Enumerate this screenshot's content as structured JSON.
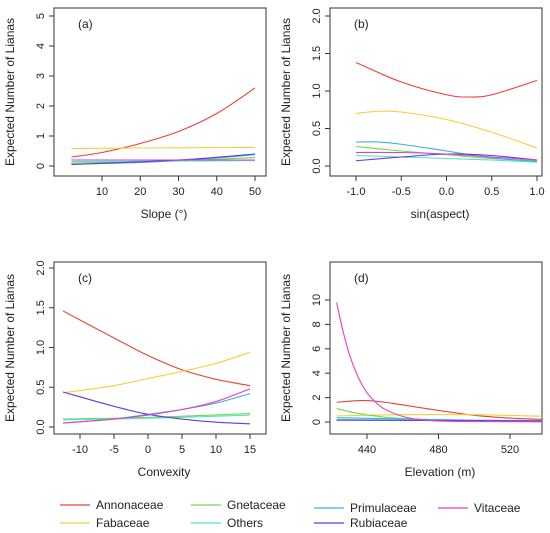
{
  "chart_data": [
    {
      "type": "line",
      "panel": "(a)",
      "xlabel": "Slope (°)",
      "ylabel": "Expected Number of Lianas",
      "xlim": [
        2,
        50
      ],
      "ylim": [
        0,
        5
      ],
      "xticks": [
        10,
        20,
        30,
        40,
        50
      ],
      "yticks": [
        0,
        1,
        2,
        3,
        4,
        5
      ],
      "series": [
        {
          "name": "Annonaceae",
          "color": "#e8413b",
          "points": [
            [
              2,
              0.3
            ],
            [
              10,
              0.45
            ],
            [
              20,
              0.75
            ],
            [
              30,
              1.15
            ],
            [
              40,
              1.75
            ],
            [
              50,
              2.6
            ]
          ]
        },
        {
          "name": "Fabaceae",
          "color": "#f2cf3a",
          "points": [
            [
              2,
              0.58
            ],
            [
              20,
              0.6
            ],
            [
              35,
              0.61
            ],
            [
              50,
              0.62
            ]
          ]
        },
        {
          "name": "Gnetaceae",
          "color": "#6fd94a",
          "points": [
            [
              2,
              0.1
            ],
            [
              20,
              0.14
            ],
            [
              35,
              0.2
            ],
            [
              50,
              0.28
            ]
          ]
        },
        {
          "name": "Others",
          "color": "#52e3c7",
          "points": [
            [
              2,
              0.15
            ],
            [
              20,
              0.16
            ],
            [
              35,
              0.17
            ],
            [
              50,
              0.18
            ]
          ]
        },
        {
          "name": "Primulaceae",
          "color": "#3ab0e0",
          "points": [
            [
              2,
              0.06
            ],
            [
              20,
              0.12
            ],
            [
              35,
              0.22
            ],
            [
              50,
              0.38
            ]
          ]
        },
        {
          "name": "Rubiaceae",
          "color": "#5a3ee0",
          "points": [
            [
              2,
              0.05
            ],
            [
              20,
              0.14
            ],
            [
              35,
              0.24
            ],
            [
              50,
              0.4
            ]
          ]
        },
        {
          "name": "Vitaceae",
          "color": "#e23fc9",
          "points": [
            [
              2,
              0.2
            ],
            [
              20,
              0.2
            ],
            [
              35,
              0.2
            ],
            [
              50,
              0.2
            ]
          ]
        }
      ]
    },
    {
      "type": "line",
      "panel": "(b)",
      "xlabel": "sin(aspect)",
      "ylabel": "Expected Number of Lianas",
      "xlim": [
        -1,
        1
      ],
      "ylim": [
        0,
        2
      ],
      "xticks": [
        "-1.0",
        "-0.5",
        "0.0",
        "0.5",
        "1.0"
      ],
      "yticks": [
        "0.0",
        "0.5",
        "1.0",
        "1.5",
        "2.0"
      ],
      "series": [
        {
          "name": "Annonaceae",
          "color": "#e8413b",
          "points": [
            [
              -1,
              1.38
            ],
            [
              -0.5,
              1.12
            ],
            [
              0,
              0.95
            ],
            [
              0.25,
              0.92
            ],
            [
              0.5,
              0.95
            ],
            [
              1,
              1.14
            ]
          ]
        },
        {
          "name": "Fabaceae",
          "color": "#f2cf3a",
          "points": [
            [
              -1,
              0.7
            ],
            [
              -0.75,
              0.73
            ],
            [
              -0.5,
              0.72
            ],
            [
              0,
              0.62
            ],
            [
              0.5,
              0.45
            ],
            [
              1,
              0.24
            ]
          ]
        },
        {
          "name": "Gnetaceae",
          "color": "#6fd94a",
          "points": [
            [
              -1,
              0.26
            ],
            [
              -0.5,
              0.2
            ],
            [
              0,
              0.15
            ],
            [
              0.5,
              0.1
            ],
            [
              1,
              0.07
            ]
          ]
        },
        {
          "name": "Others",
          "color": "#52e3c7",
          "points": [
            [
              -1,
              0.14
            ],
            [
              -0.5,
              0.12
            ],
            [
              0,
              0.1
            ],
            [
              0.5,
              0.08
            ],
            [
              1,
              0.05
            ]
          ]
        },
        {
          "name": "Primulaceae",
          "color": "#3ab0e0",
          "points": [
            [
              -1,
              0.32
            ],
            [
              -0.75,
              0.32
            ],
            [
              -0.5,
              0.29
            ],
            [
              0,
              0.2
            ],
            [
              0.5,
              0.11
            ],
            [
              1,
              0.06
            ]
          ]
        },
        {
          "name": "Rubiaceae",
          "color": "#5a3ee0",
          "points": [
            [
              -1,
              0.07
            ],
            [
              -0.5,
              0.12
            ],
            [
              0,
              0.16
            ],
            [
              0.5,
              0.14
            ],
            [
              1,
              0.08
            ]
          ]
        },
        {
          "name": "Vitaceae",
          "color": "#e23fc9",
          "points": [
            [
              -1,
              0.18
            ],
            [
              -0.5,
              0.18
            ],
            [
              0,
              0.16
            ],
            [
              0.5,
              0.12
            ],
            [
              1,
              0.08
            ]
          ]
        }
      ]
    },
    {
      "type": "line",
      "panel": "(c)",
      "xlabel": "Convexity",
      "ylabel": "Expected Number of Lianas",
      "xlim": [
        -12.5,
        15
      ],
      "ylim": [
        0,
        2
      ],
      "xticks": [
        "-10",
        "-5",
        "0",
        "5",
        "10",
        "15"
      ],
      "yticks": [
        "0.0",
        "0.5",
        "1.0",
        "1.5",
        "2.0"
      ],
      "series": [
        {
          "name": "Annonaceae",
          "color": "#e8413b",
          "points": [
            [
              -12.5,
              1.46
            ],
            [
              -5,
              1.12
            ],
            [
              0,
              0.9
            ],
            [
              5,
              0.72
            ],
            [
              10,
              0.6
            ],
            [
              15,
              0.52
            ]
          ]
        },
        {
          "name": "Fabaceae",
          "color": "#f2cf3a",
          "points": [
            [
              -12.5,
              0.43
            ],
            [
              -5,
              0.52
            ],
            [
              0,
              0.61
            ],
            [
              5,
              0.7
            ],
            [
              10,
              0.8
            ],
            [
              15,
              0.94
            ]
          ]
        },
        {
          "name": "Gnetaceae",
          "color": "#6fd94a",
          "points": [
            [
              -12.5,
              0.1
            ],
            [
              0,
              0.12
            ],
            [
              15,
              0.17
            ]
          ]
        },
        {
          "name": "Others",
          "color": "#52e3c7",
          "points": [
            [
              -12.5,
              0.09
            ],
            [
              0,
              0.11
            ],
            [
              15,
              0.15
            ]
          ]
        },
        {
          "name": "Primulaceae",
          "color": "#3ab0e0",
          "points": [
            [
              -12.5,
              0.05
            ],
            [
              -5,
              0.1
            ],
            [
              0,
              0.16
            ],
            [
              5,
              0.22
            ],
            [
              10,
              0.3
            ],
            [
              15,
              0.42
            ]
          ]
        },
        {
          "name": "Rubiaceae",
          "color": "#5a3ee0",
          "points": [
            [
              -12.5,
              0.44
            ],
            [
              -5,
              0.26
            ],
            [
              0,
              0.16
            ],
            [
              5,
              0.1
            ],
            [
              10,
              0.06
            ],
            [
              15,
              0.04
            ]
          ]
        },
        {
          "name": "Vitaceae",
          "color": "#e23fc9",
          "points": [
            [
              -12.5,
              0.05
            ],
            [
              -5,
              0.1
            ],
            [
              0,
              0.15
            ],
            [
              5,
              0.22
            ],
            [
              10,
              0.32
            ],
            [
              15,
              0.48
            ]
          ]
        }
      ]
    },
    {
      "type": "line",
      "panel": "(d)",
      "xlabel": "Elevation (m)",
      "ylabel": "Expected Number of Lianas",
      "xlim": [
        423,
        563
      ],
      "ylim": [
        0,
        11
      ],
      "xticks": [
        "440",
        "480",
        "520"
      ],
      "yticks": [
        "0",
        "2",
        "4",
        "6",
        "8",
        "10"
      ],
      "series": [
        {
          "name": "Annonaceae",
          "color": "#e8413b",
          "points": [
            [
              423,
              1.62
            ],
            [
              435,
              1.75
            ],
            [
              445,
              1.7
            ],
            [
              460,
              1.4
            ],
            [
              480,
              0.95
            ],
            [
              500,
              0.55
            ],
            [
              520,
              0.32
            ],
            [
              540,
              0.2
            ],
            [
              560,
              0.12
            ]
          ]
        },
        {
          "name": "Fabaceae",
          "color": "#f2cf3a",
          "points": [
            [
              423,
              0.5
            ],
            [
              460,
              0.6
            ],
            [
              500,
              0.6
            ],
            [
              530,
              0.5
            ],
            [
              560,
              0.4
            ]
          ]
        },
        {
          "name": "Gnetaceae",
          "color": "#6fd94a",
          "points": [
            [
              423,
              1.1
            ],
            [
              435,
              0.7
            ],
            [
              450,
              0.4
            ],
            [
              470,
              0.2
            ],
            [
              500,
              0.08
            ],
            [
              560,
              0.02
            ]
          ]
        },
        {
          "name": "Others",
          "color": "#52e3c7",
          "points": [
            [
              423,
              0.2
            ],
            [
              480,
              0.15
            ],
            [
              560,
              0.1
            ]
          ]
        },
        {
          "name": "Primulaceae",
          "color": "#3ab0e0",
          "points": [
            [
              423,
              0.35
            ],
            [
              460,
              0.25
            ],
            [
              500,
              0.15
            ],
            [
              560,
              0.06
            ]
          ]
        },
        {
          "name": "Rubiaceae",
          "color": "#5a3ee0",
          "points": [
            [
              423,
              0.15
            ],
            [
              480,
              0.12
            ],
            [
              560,
              0.08
            ]
          ]
        },
        {
          "name": "Vitaceae",
          "color": "#e23fc9",
          "points": [
            [
              423,
              9.8
            ],
            [
              426,
              7.8
            ],
            [
              430,
              5.6
            ],
            [
              435,
              3.7
            ],
            [
              440,
              2.4
            ],
            [
              445,
              1.6
            ],
            [
              450,
              1.05
            ],
            [
              460,
              0.45
            ],
            [
              470,
              0.2
            ],
            [
              490,
              0.05
            ],
            [
              560,
              0.01
            ]
          ]
        }
      ]
    }
  ],
  "legend": {
    "placement": "bottom",
    "entries": [
      {
        "name": "Annonaceae",
        "color": "#e8413b"
      },
      {
        "name": "Fabaceae",
        "color": "#f2cf3a"
      },
      {
        "name": "Gnetaceae",
        "color": "#6fd94a"
      },
      {
        "name": "Others",
        "color": "#52e3c7"
      },
      {
        "name": "Primulaceae",
        "color": "#3ab0e0"
      },
      {
        "name": "Rubiaceae",
        "color": "#5a3ee0"
      },
      {
        "name": "Vitaceae",
        "color": "#e23fc9"
      }
    ]
  }
}
